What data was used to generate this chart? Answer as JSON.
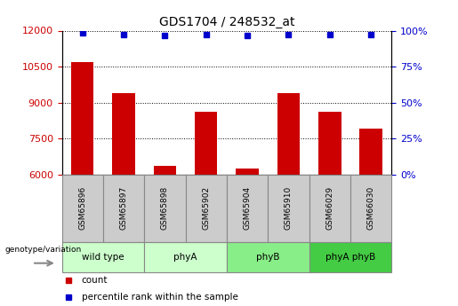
{
  "title": "GDS1704 / 248532_at",
  "samples": [
    "GSM65896",
    "GSM65897",
    "GSM65898",
    "GSM65902",
    "GSM65904",
    "GSM65910",
    "GSM66029",
    "GSM66030"
  ],
  "bar_values": [
    10700,
    9400,
    6350,
    8600,
    6250,
    9400,
    8600,
    7900
  ],
  "percentile_values": [
    98.5,
    97.5,
    96.5,
    97.2,
    96.5,
    97.5,
    97.0,
    97.0
  ],
  "ylim_left": [
    6000,
    12000
  ],
  "ylim_right": [
    0,
    100
  ],
  "yticks_left": [
    6000,
    7500,
    9000,
    10500,
    12000
  ],
  "yticks_right": [
    0,
    25,
    50,
    75,
    100
  ],
  "bar_color": "#cc0000",
  "dot_color": "#0000cc",
  "bar_width": 0.55,
  "group_configs": [
    {
      "label": "wild type",
      "start": 0,
      "end": 1,
      "color": "#ccffcc"
    },
    {
      "label": "phyA",
      "start": 2,
      "end": 3,
      "color": "#ccffcc"
    },
    {
      "label": "phyB",
      "start": 4,
      "end": 5,
      "color": "#88ee88"
    },
    {
      "label": "phyA phyB",
      "start": 6,
      "end": 7,
      "color": "#44cc44"
    }
  ],
  "sample_box_color": "#cccccc",
  "sample_box_edge": "#888888",
  "bg_color": "#ffffff",
  "grid_color": "#000000",
  "tick_label_color_left": "#cc0000",
  "tick_label_color_right": "#0000cc",
  "legend_count_color": "#cc0000",
  "legend_pct_color": "#0000cc"
}
